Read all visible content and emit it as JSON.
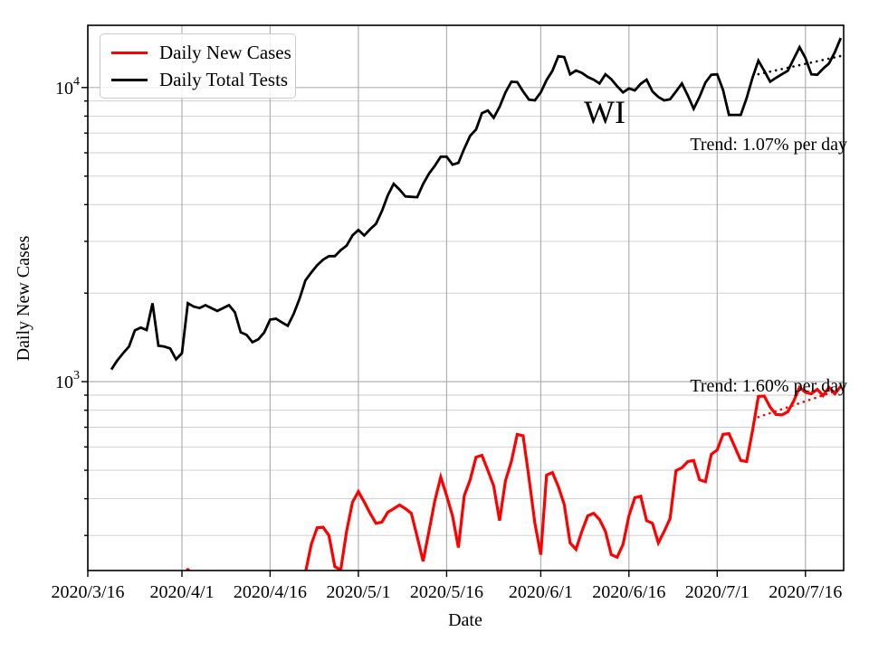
{
  "figure": {
    "legend": {
      "items": [
        {
          "label": "Daily New Cases",
          "color": "#ff0000"
        },
        {
          "label": "Daily Total Tests",
          "color": "#000000"
        }
      ]
    },
    "annotations": {
      "state_label": "WI",
      "trend_tests": "Trend: 1.07% per day",
      "trend_cases": "Trend: 1.60% per day"
    }
  },
  "chart_data": {
    "type": "line",
    "title": "",
    "xlabel": "Date",
    "ylabel": "Daily New Cases",
    "yscale": "log",
    "grid": true,
    "legend_position": "upper left",
    "x_start_date": "2020/3/16",
    "xlim_days": [
      0,
      128.5
    ],
    "ylim": [
      228,
      16280
    ],
    "xticks": [
      "2020/3/16",
      "2020/4/1",
      "2020/4/16",
      "2020/5/1",
      "2020/5/16",
      "2020/6/1",
      "2020/6/16",
      "2020/7/1",
      "2020/7/16"
    ],
    "yticks_major": [
      1000,
      10000
    ],
    "yticks_minor": [
      300,
      400,
      500,
      600,
      700,
      800,
      900,
      2000,
      3000,
      4000,
      5000,
      6000,
      7000,
      8000,
      9000
    ],
    "colors": {
      "cases": "#ff0000",
      "tests": "#000000",
      "grid_major": "#b0b0b0",
      "grid_minor": "#cbcbcb"
    },
    "series": [
      {
        "name": "Daily Total Tests",
        "color": "#000000",
        "width": 2.8,
        "segments": [
          [
            [
              "3/20",
              1100
            ],
            [
              "3/21",
              1180
            ],
            [
              "3/22",
              1250
            ],
            [
              "3/23",
              1316
            ],
            [
              "3/24",
              1494
            ],
            [
              "3/25",
              1527
            ],
            [
              "3/26",
              1500
            ],
            [
              "3/27",
              1848
            ],
            [
              "3/28",
              1325
            ],
            [
              "3/29",
              1316
            ],
            [
              "3/30",
              1297
            ],
            [
              "3/31",
              1191
            ],
            [
              "4/1",
              1250
            ],
            [
              "4/2",
              1848
            ],
            [
              "4/3",
              1800
            ],
            [
              "4/4",
              1780
            ],
            [
              "4/5",
              1820
            ],
            [
              "4/6",
              1780
            ],
            [
              "4/7",
              1740
            ],
            [
              "4/8",
              1780
            ],
            [
              "4/9",
              1820
            ],
            [
              "4/10",
              1722
            ],
            [
              "4/11",
              1472
            ],
            [
              "4/12",
              1442
            ],
            [
              "4/13",
              1362
            ],
            [
              "4/14",
              1393
            ],
            [
              "4/15",
              1470
            ],
            [
              "4/16",
              1626
            ],
            [
              "4/17",
              1637
            ],
            [
              "4/18",
              1590
            ],
            [
              "4/19",
              1549
            ],
            [
              "4/20",
              1700
            ],
            [
              "4/21",
              1914
            ],
            [
              "4/22",
              2208
            ],
            [
              "4/23",
              2350
            ],
            [
              "4/24",
              2489
            ],
            [
              "4/25",
              2600
            ],
            [
              "4/26",
              2672
            ],
            [
              "4/27",
              2672
            ],
            [
              "4/28",
              2800
            ],
            [
              "4/29",
              2900
            ],
            [
              "4/30",
              3141
            ],
            [
              "5/1",
              3281
            ],
            [
              "5/2",
              3141
            ],
            [
              "5/3",
              3300
            ],
            [
              "5/4",
              3443
            ],
            [
              "5/5",
              3800
            ],
            [
              "5/6",
              4300
            ],
            [
              "5/7",
              4706
            ],
            [
              "5/8",
              4500
            ],
            [
              "5/9",
              4264
            ],
            [
              "5/10",
              4250
            ],
            [
              "5/11",
              4238
            ],
            [
              "5/12",
              4700
            ],
            [
              "5/13",
              5100
            ],
            [
              "5/14",
              5424
            ],
            [
              "5/15",
              5821
            ],
            [
              "5/16",
              5821
            ],
            [
              "5/17",
              5470
            ],
            [
              "5/18",
              5546
            ],
            [
              "5/19",
              6200
            ],
            [
              "5/20",
              6853
            ],
            [
              "5/21",
              7201
            ],
            [
              "5/22",
              8181
            ],
            [
              "5/23",
              8356
            ],
            [
              "5/24",
              7898
            ],
            [
              "5/25",
              8600
            ],
            [
              "5/26",
              9630
            ],
            [
              "5/27",
              10470
            ],
            [
              "5/28",
              10440
            ],
            [
              "5/29",
              9700
            ],
            [
              "5/30",
              9100
            ],
            [
              "5/31",
              9050
            ],
            [
              "6/1",
              9630
            ],
            [
              "6/2",
              10600
            ],
            [
              "6/3",
              11400
            ],
            [
              "6/4",
              12780
            ],
            [
              "6/5",
              12700
            ],
            [
              "6/6",
              11090
            ],
            [
              "6/7",
              11430
            ],
            [
              "6/8",
              11220
            ],
            [
              "6/9",
              10860
            ],
            [
              "6/10",
              10640
            ],
            [
              "6/11",
              10330
            ],
            [
              "6/12",
              11090
            ],
            [
              "6/13",
              10680
            ],
            [
              "6/14",
              10100
            ],
            [
              "6/15",
              9630
            ],
            [
              "6/16",
              9930
            ],
            [
              "6/17",
              9780
            ],
            [
              "6/18",
              10300
            ],
            [
              "6/19",
              10640
            ],
            [
              "6/20",
              9700
            ],
            [
              "6/21",
              9290
            ],
            [
              "6/22",
              9050
            ],
            [
              "6/23",
              9130
            ],
            [
              "6/24",
              9700
            ],
            [
              "6/25",
              10330
            ],
            [
              "6/26",
              9400
            ],
            [
              "6/27",
              8470
            ],
            [
              "6/28",
              9300
            ],
            [
              "6/29",
              10400
            ],
            [
              "6/30",
              11050
            ],
            [
              "7/1",
              11090
            ],
            [
              "7/2",
              9800
            ],
            [
              "7/3",
              8070
            ],
            [
              "7/4",
              8070
            ],
            [
              "7/5",
              8070
            ],
            [
              "7/6",
              9200
            ],
            [
              "7/7",
              10800
            ],
            [
              "7/8",
              12340
            ],
            [
              "7/9",
              11400
            ],
            [
              "7/10",
              10470
            ],
            [
              "7/11",
              10800
            ],
            [
              "7/12",
              11100
            ],
            [
              "7/13",
              11400
            ],
            [
              "7/14",
              12500
            ],
            [
              "7/15",
              13720
            ],
            [
              "7/16",
              12600
            ],
            [
              "7/17",
              11090
            ],
            [
              "7/18",
              11050
            ],
            [
              "7/19",
              11600
            ],
            [
              "7/20",
              12080
            ],
            [
              "7/21",
              13200
            ],
            [
              "7/22",
              14730
            ]
          ]
        ]
      },
      {
        "name": "Daily New Cases",
        "color": "#ff0000",
        "width": 3.2,
        "segments": [
          [
            [
              "4/2",
              229
            ]
          ],
          [
            [
              "4/22",
              224
            ],
            [
              "4/23",
              280
            ],
            [
              "4/24",
              319
            ],
            [
              "4/25",
              320
            ],
            [
              "4/26",
              300
            ],
            [
              "4/27",
              235
            ],
            [
              "4/28",
              229
            ],
            [
              "4/29",
              310
            ],
            [
              "4/30",
              389
            ],
            [
              "5/1",
              423
            ],
            [
              "5/2",
              390
            ],
            [
              "5/3",
              357
            ],
            [
              "5/4",
              330
            ],
            [
              "5/5",
              333
            ],
            [
              "5/6",
              360
            ],
            [
              "5/7",
              370
            ],
            [
              "5/8",
              381
            ],
            [
              "5/9",
              370
            ],
            [
              "5/10",
              357
            ],
            [
              "5/11",
              297
            ],
            [
              "5/12",
              245
            ],
            [
              "5/13",
              310
            ],
            [
              "5/14",
              394
            ],
            [
              "5/15",
              474
            ],
            [
              "5/16",
              410
            ],
            [
              "5/17",
              350
            ],
            [
              "5/18",
              273
            ],
            [
              "5/19",
              410
            ],
            [
              "5/20",
              464
            ],
            [
              "5/21",
              554
            ],
            [
              "5/22",
              562
            ],
            [
              "5/23",
              500
            ],
            [
              "5/24",
              442
            ],
            [
              "5/25",
              337
            ],
            [
              "5/26",
              460
            ],
            [
              "5/27",
              535
            ],
            [
              "5/28",
              662
            ],
            [
              "5/29",
              655
            ],
            [
              "5/30",
              470
            ],
            [
              "5/31",
              330
            ],
            [
              "6/1",
              258
            ],
            [
              "6/2",
              481
            ],
            [
              "6/3",
              491
            ],
            [
              "6/4",
              440
            ],
            [
              "6/5",
              383
            ],
            [
              "6/6",
              283
            ],
            [
              "6/7",
              269
            ],
            [
              "6/8",
              310
            ],
            [
              "6/9",
              350
            ],
            [
              "6/10",
              357
            ],
            [
              "6/11",
              340
            ],
            [
              "6/12",
              310
            ],
            [
              "6/13",
              258
            ],
            [
              "6/14",
              253
            ],
            [
              "6/15",
              280
            ],
            [
              "6/16",
              350
            ],
            [
              "6/17",
              403
            ],
            [
              "6/18",
              408
            ],
            [
              "6/19",
              337
            ],
            [
              "6/20",
              330
            ],
            [
              "6/21",
              283
            ],
            [
              "6/22",
              310
            ],
            [
              "6/23",
              343
            ],
            [
              "6/24",
              498
            ],
            [
              "6/25",
              510
            ],
            [
              "6/26",
              535
            ],
            [
              "6/27",
              540
            ],
            [
              "6/28",
              464
            ],
            [
              "6/29",
              457
            ],
            [
              "6/30",
              566
            ],
            [
              "7/1",
              586
            ],
            [
              "7/2",
              662
            ],
            [
              "7/3",
              666
            ],
            [
              "7/4",
              600
            ],
            [
              "7/5",
              540
            ],
            [
              "7/6",
              535
            ],
            [
              "7/7",
              680
            ],
            [
              "7/8",
              891
            ],
            [
              "7/9",
              894
            ],
            [
              "7/10",
              820
            ],
            [
              "7/11",
              773
            ],
            [
              "7/12",
              771
            ],
            [
              "7/13",
              790
            ],
            [
              "7/14",
              859
            ],
            [
              "7/15",
              957
            ],
            [
              "7/16",
              920
            ],
            [
              "7/17",
              910
            ],
            [
              "7/18",
              942
            ],
            [
              "7/19",
              897
            ],
            [
              "7/20",
              957
            ],
            [
              "7/21",
              910
            ],
            [
              "7/22",
              964
            ]
          ]
        ]
      }
    ],
    "trend_lines": [
      {
        "name": "tests-trend",
        "color": "#000000",
        "rate_label": "Trend: 1.07% per day",
        "points": [
          [
            "7/8",
            11100
          ],
          [
            "7/22",
            12800
          ]
        ]
      },
      {
        "name": "cases-trend",
        "color": "#ff0000",
        "rate_label": "Trend: 1.60% per day",
        "points": [
          [
            "7/8",
            758
          ],
          [
            "7/22",
            942
          ]
        ]
      }
    ]
  }
}
